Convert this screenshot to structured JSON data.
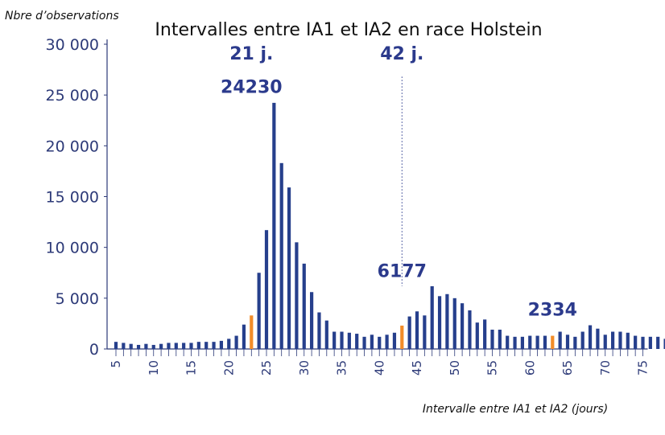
{
  "chart_data": {
    "type": "bar",
    "title": "Intervalles entre IA1 et IA2 en race Holstein",
    "ylabel": "Nbre d’observations",
    "xlabel": "Intervalle entre IA1 et IA2 (jours)",
    "ylim": [
      0,
      30000
    ],
    "yticks": [
      "0",
      "5 000",
      "10 000",
      "15 000",
      "20 000",
      "25 000",
      "30 000"
    ],
    "ytick_values": [
      0,
      5000,
      10000,
      15000,
      20000,
      25000,
      30000
    ],
    "xticks": [
      "5",
      "10",
      "15",
      "20",
      "25",
      "30",
      "35",
      "40",
      "45",
      "50",
      "55",
      "60",
      "65",
      "70",
      "75"
    ],
    "xtick_values": [
      5,
      10,
      15,
      20,
      25,
      30,
      35,
      40,
      45,
      50,
      55,
      60,
      65,
      70,
      75
    ],
    "x_start": 5,
    "x_end": 75,
    "grid": false,
    "colors": {
      "main": "#263f8c",
      "highlight": "#f28c28",
      "axis": "#2d3a78"
    },
    "values": [
      700,
      600,
      500,
      400,
      500,
      400,
      500,
      600,
      600,
      600,
      600,
      700,
      700,
      700,
      800,
      1000,
      1300,
      2400,
      3300,
      7500,
      11700,
      24230,
      18300,
      15900,
      10500,
      8400,
      5600,
      3600,
      2800,
      1700,
      1700,
      1600,
      1500,
      1200,
      1400,
      1200,
      1400,
      1600,
      2300,
      3200,
      3700,
      3300,
      6177,
      5200,
      5400,
      5000,
      4500,
      3800,
      2600,
      2900,
      1900,
      1900,
      1300,
      1200,
      1200,
      1300,
      1300,
      1300,
      1300,
      1700,
      1400,
      1200,
      1700,
      2334,
      2000,
      1400,
      1700,
      1700,
      1600,
      1300,
      1200,
      1200,
      1200,
      1000,
      900
    ],
    "highlight_x": [
      23,
      43,
      63
    ],
    "annotations": [
      {
        "label": "21 j.",
        "x": 23,
        "y": 28500,
        "color": "#2b3a8c"
      },
      {
        "label": "24230",
        "x": 23,
        "y": 25200,
        "color": "#2b3a8c"
      },
      {
        "label": "42 j.",
        "x": 43,
        "y": 28500,
        "color": "#2b3a8c"
      },
      {
        "label": "6177",
        "x": 43,
        "y": 7100,
        "color": "#2b3a8c"
      },
      {
        "label": "2334",
        "x": 63,
        "y": 3300,
        "color": "#2b3a8c"
      }
    ],
    "reference_line": {
      "x": 43,
      "from": 6177,
      "to": 26800,
      "style": "dotted"
    }
  }
}
